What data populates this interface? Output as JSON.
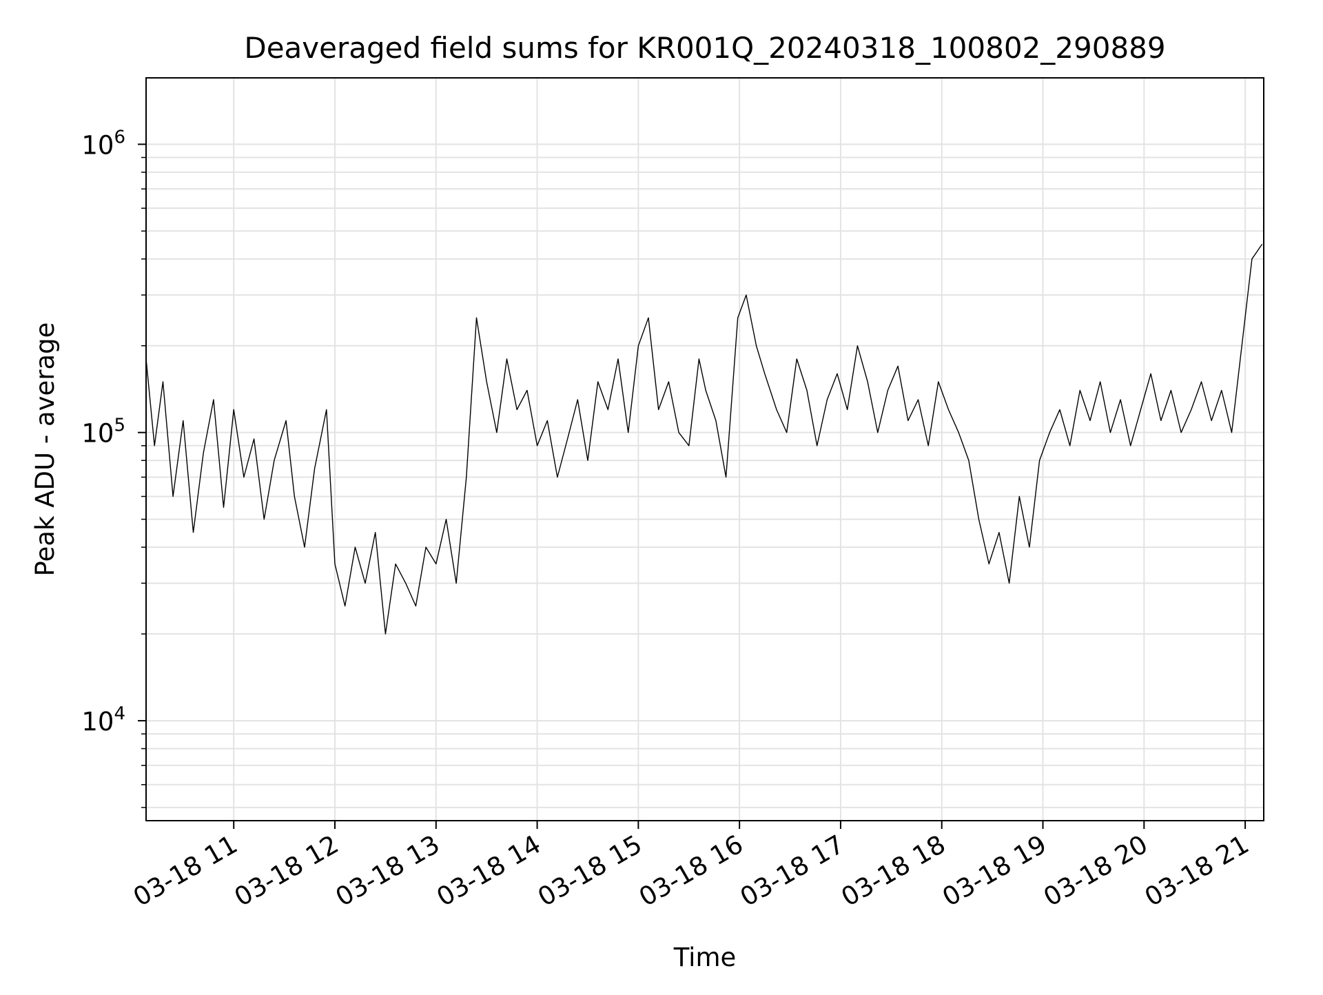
{
  "chart_data": {
    "type": "line",
    "title": "Deaveraged field sums for KR001Q_20240318_100802_290889",
    "xlabel": "Time",
    "ylabel": "Peak ADU - average",
    "yscale": "log",
    "ylim": [
      4500,
      1700000
    ],
    "xlim": [
      "2024-03-18T10:08:00",
      "2024-03-18T21:11:00"
    ],
    "grid": true,
    "legend": "none",
    "line_color": "#000000",
    "x_ticks": [
      {
        "t": "2024-03-18T11:00:00",
        "label": "03-18 11"
      },
      {
        "t": "2024-03-18T12:00:00",
        "label": "03-18 12"
      },
      {
        "t": "2024-03-18T13:00:00",
        "label": "03-18 13"
      },
      {
        "t": "2024-03-18T14:00:00",
        "label": "03-18 14"
      },
      {
        "t": "2024-03-18T15:00:00",
        "label": "03-18 15"
      },
      {
        "t": "2024-03-18T16:00:00",
        "label": "03-18 16"
      },
      {
        "t": "2024-03-18T17:00:00",
        "label": "03-18 17"
      },
      {
        "t": "2024-03-18T18:00:00",
        "label": "03-18 18"
      },
      {
        "t": "2024-03-18T19:00:00",
        "label": "03-18 19"
      },
      {
        "t": "2024-03-18T20:00:00",
        "label": "03-18 20"
      },
      {
        "t": "2024-03-18T21:00:00",
        "label": "03-18 21"
      }
    ],
    "y_ticks": [
      {
        "value": 10000,
        "base": "10",
        "exp": "4"
      },
      {
        "value": 100000,
        "base": "10",
        "exp": "5"
      },
      {
        "value": 1000000,
        "base": "10",
        "exp": "6"
      }
    ],
    "series": [
      {
        "x": [
          "2024-03-18T10:08:00",
          "2024-03-18T10:13:00",
          "2024-03-18T10:18:00",
          "2024-03-18T10:24:00",
          "2024-03-18T10:30:00",
          "2024-03-18T10:36:00",
          "2024-03-18T10:42:00",
          "2024-03-18T10:48:00",
          "2024-03-18T10:54:00",
          "2024-03-18T11:00:00",
          "2024-03-18T11:06:00",
          "2024-03-18T11:12:00",
          "2024-03-18T11:18:00",
          "2024-03-18T11:24:00",
          "2024-03-18T11:31:00",
          "2024-03-18T11:36:00",
          "2024-03-18T11:42:00",
          "2024-03-18T11:48:00",
          "2024-03-18T11:55:00",
          "2024-03-18T12:00:00",
          "2024-03-18T12:06:00",
          "2024-03-18T12:12:00",
          "2024-03-18T12:18:00",
          "2024-03-18T12:24:00",
          "2024-03-18T12:30:00",
          "2024-03-18T12:36:00",
          "2024-03-18T12:42:00",
          "2024-03-18T12:48:00",
          "2024-03-18T12:54:00",
          "2024-03-18T13:00:00",
          "2024-03-18T13:06:00",
          "2024-03-18T13:12:00",
          "2024-03-18T13:18:00",
          "2024-03-18T13:24:00",
          "2024-03-18T13:30:00",
          "2024-03-18T13:36:00",
          "2024-03-18T13:42:00",
          "2024-03-18T13:48:00",
          "2024-03-18T13:54:00",
          "2024-03-18T14:00:00",
          "2024-03-18T14:06:00",
          "2024-03-18T14:12:00",
          "2024-03-18T14:18:00",
          "2024-03-18T14:24:00",
          "2024-03-18T14:30:00",
          "2024-03-18T14:36:00",
          "2024-03-18T14:42:00",
          "2024-03-18T14:48:00",
          "2024-03-18T14:54:00",
          "2024-03-18T15:00:00",
          "2024-03-18T15:06:00",
          "2024-03-18T15:12:00",
          "2024-03-18T15:18:00",
          "2024-03-18T15:24:00",
          "2024-03-18T15:30:00",
          "2024-03-18T15:36:00",
          "2024-03-18T15:40:00",
          "2024-03-18T15:46:00",
          "2024-03-18T15:52:00",
          "2024-03-18T15:59:00",
          "2024-03-18T16:04:00",
          "2024-03-18T16:10:00",
          "2024-03-18T16:15:00",
          "2024-03-18T16:22:00",
          "2024-03-18T16:28:00",
          "2024-03-18T16:34:00",
          "2024-03-18T16:40:00",
          "2024-03-18T16:46:00",
          "2024-03-18T16:52:00",
          "2024-03-18T16:58:00",
          "2024-03-18T17:04:00",
          "2024-03-18T17:10:00",
          "2024-03-18T17:16:00",
          "2024-03-18T17:22:00",
          "2024-03-18T17:28:00",
          "2024-03-18T17:34:00",
          "2024-03-18T17:40:00",
          "2024-03-18T17:46:00",
          "2024-03-18T17:52:00",
          "2024-03-18T17:58:00",
          "2024-03-18T18:04:00",
          "2024-03-18T18:10:00",
          "2024-03-18T18:16:00",
          "2024-03-18T18:22:00",
          "2024-03-18T18:28:00",
          "2024-03-18T18:34:00",
          "2024-03-18T18:40:00",
          "2024-03-18T18:46:00",
          "2024-03-18T18:52:00",
          "2024-03-18T18:58:00",
          "2024-03-18T19:04:00",
          "2024-03-18T19:10:00",
          "2024-03-18T19:16:00",
          "2024-03-18T19:22:00",
          "2024-03-18T19:28:00",
          "2024-03-18T19:34:00",
          "2024-03-18T19:40:00",
          "2024-03-18T19:46:00",
          "2024-03-18T19:52:00",
          "2024-03-18T19:58:00",
          "2024-03-18T20:04:00",
          "2024-03-18T20:10:00",
          "2024-03-18T20:16:00",
          "2024-03-18T20:22:00",
          "2024-03-18T20:28:00",
          "2024-03-18T20:34:00",
          "2024-03-18T20:40:00",
          "2024-03-18T20:46:00",
          "2024-03-18T20:52:00",
          "2024-03-18T20:58:00",
          "2024-03-18T21:04:00",
          "2024-03-18T21:10:00"
        ],
        "y": [
          180000,
          90000,
          150000,
          60000,
          110000,
          45000,
          85000,
          130000,
          55000,
          120000,
          70000,
          95000,
          50000,
          80000,
          110000,
          60000,
          40000,
          75000,
          120000,
          35000,
          25000,
          40000,
          30000,
          45000,
          20000,
          35000,
          30000,
          25000,
          40000,
          35000,
          50000,
          30000,
          70000,
          250000,
          150000,
          100000,
          180000,
          120000,
          140000,
          90000,
          110000,
          70000,
          95000,
          130000,
          80000,
          150000,
          120000,
          180000,
          100000,
          200000,
          250000,
          120000,
          150000,
          100000,
          90000,
          180000,
          140000,
          110000,
          70000,
          250000,
          300000,
          200000,
          160000,
          120000,
          100000,
          180000,
          140000,
          90000,
          130000,
          160000,
          120000,
          200000,
          150000,
          100000,
          140000,
          170000,
          110000,
          130000,
          90000,
          150000,
          120000,
          100000,
          80000,
          50000,
          35000,
          45000,
          30000,
          60000,
          40000,
          80000,
          100000,
          120000,
          90000,
          140000,
          110000,
          150000,
          100000,
          130000,
          90000,
          120000,
          160000,
          110000,
          140000,
          100000,
          120000,
          150000,
          110000,
          140000,
          100000,
          200000,
          400000,
          450000
        ]
      }
    ]
  }
}
